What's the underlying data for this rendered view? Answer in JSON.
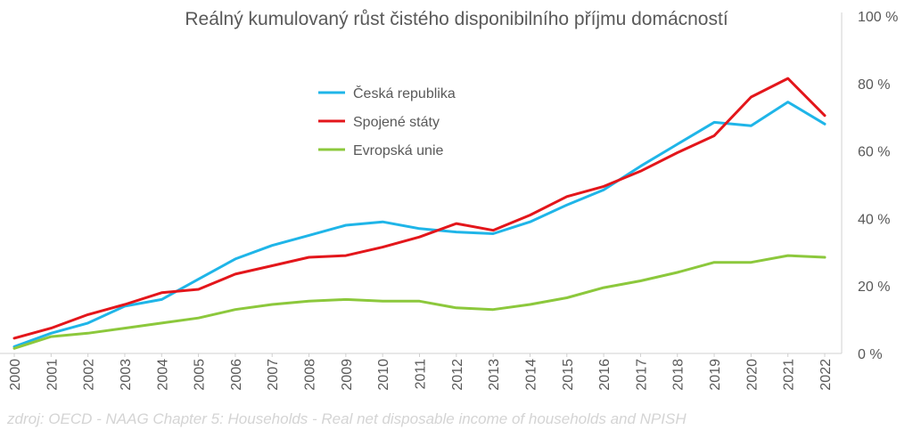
{
  "chart_data": {
    "type": "line",
    "title": "Reálný kumulovaný růst čistého disponibilního příjmu domácností",
    "x": [
      "2000",
      "2001",
      "2002",
      "2003",
      "2004",
      "2005",
      "2006",
      "2007",
      "2008",
      "2009",
      "2010",
      "2011",
      "2012",
      "2013",
      "2014",
      "2015",
      "2016",
      "2017",
      "2018",
      "2019",
      "2020",
      "2021",
      "2022"
    ],
    "y_ticks": [
      "0 %",
      "20 %",
      "40 %",
      "60 %",
      "80 %",
      "100 %"
    ],
    "ylim": [
      0,
      100
    ],
    "grid": false,
    "y_axis_position": "right",
    "legend_position": "upper-center",
    "series": [
      {
        "name": "Česká republika",
        "color": "#1fb5e8",
        "values": [
          2,
          6,
          9,
          14,
          16,
          22,
          28,
          32,
          35,
          38,
          39,
          37,
          36,
          35.5,
          39,
          44,
          48.5,
          55.5,
          62,
          68.5,
          67.5,
          74.5,
          68
        ]
      },
      {
        "name": "Spojené státy",
        "color": "#e3161b",
        "values": [
          4.5,
          7.5,
          11.5,
          14.5,
          18,
          19,
          23.5,
          26,
          28.5,
          29,
          31.5,
          34.5,
          38.5,
          36.5,
          41,
          46.5,
          49.5,
          54,
          59.5,
          64.5,
          76,
          81.5,
          70.5
        ]
      },
      {
        "name": "Evropská unie",
        "color": "#8cc83c",
        "values": [
          1.5,
          5,
          6,
          7.5,
          9,
          10.5,
          13,
          14.5,
          15.5,
          16,
          15.5,
          15.5,
          13.5,
          13,
          14.5,
          16.5,
          19.5,
          21.5,
          24,
          27,
          27,
          29,
          28.5
        ]
      }
    ]
  },
  "source": "zdroj: OECD - NAAG Chapter 5: Households - Real net disposable income of households and NPISH"
}
